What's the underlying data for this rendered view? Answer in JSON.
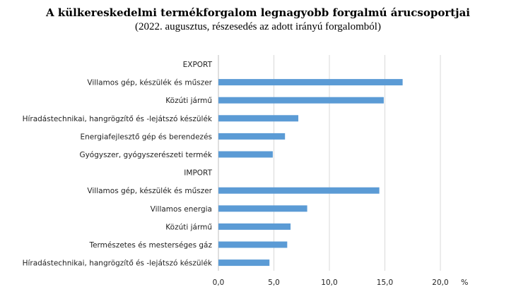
{
  "chart_data": {
    "type": "bar",
    "orientation": "horizontal",
    "title": "A külkereskedelmi termékforgalom legnagyobb forgalmú árucsoportjai",
    "subtitle": "(2022. augusztus, részesedés az adott irányú forgalomból)",
    "unit": "%",
    "xlim": [
      0,
      20
    ],
    "ticks": [
      "0,0",
      "5,0",
      "10,0",
      "15,0",
      "20,0"
    ],
    "tick_values": [
      0,
      5,
      10,
      15,
      20
    ],
    "grid": "vertical",
    "color": "#5b9bd5",
    "categories": [
      "EXPORT",
      "Villamos gép, készülék és műszer",
      "Közúti jármű",
      "Híradástechnikai, hangrögzítő és -lejátszó készülék",
      "Energiafejlesztő gép és berendezés",
      "Gyógyszer, gyógyszerészeti termék",
      "IMPORT",
      "Villamos gép, készülék és műszer",
      "Villamos energia",
      "Közúti jármű",
      "Természetes és mesterséges gáz",
      "Híradástechnikai, hangrögzítő és -lejátszó készülék"
    ],
    "values": [
      null,
      16.6,
      14.9,
      7.2,
      6.0,
      4.9,
      null,
      14.5,
      8.0,
      6.5,
      6.2,
      4.6
    ]
  }
}
